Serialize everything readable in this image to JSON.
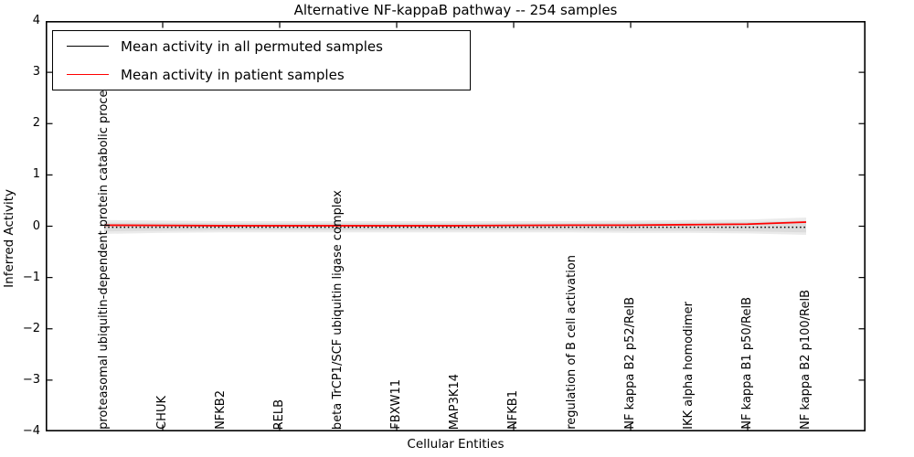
{
  "title": "Alternative NF-kappaB pathway -- 254 samples",
  "chart_data": {
    "type": "line",
    "title": "Alternative NF-kappaB pathway -- 254 samples",
    "xlabel": "Cellular Entities",
    "ylabel": "Inferred Activity",
    "ylim": [
      -4,
      4
    ],
    "grid": false,
    "legend_position": "upper-left",
    "yticks": [
      {
        "v": 4,
        "label": "4"
      },
      {
        "v": 3,
        "label": "3"
      },
      {
        "v": 2,
        "label": "2"
      },
      {
        "v": 1,
        "label": "1"
      },
      {
        "v": 0,
        "label": "0"
      },
      {
        "v": -1,
        "label": "−1"
      },
      {
        "v": -2,
        "label": "−2"
      },
      {
        "v": -3,
        "label": "−3"
      },
      {
        "v": -4,
        "label": "−4"
      }
    ],
    "categories": [
      "proteasomal ubiquitin-dependent protein catabolic process",
      "CHUK",
      "NFKB2",
      "RELB",
      "beta TrCP1/SCF ubiquitin ligase complex",
      "FBXW11",
      "MAP3K14",
      "NFKB1",
      "regulation of B cell activation",
      "NF kappa B2 p52/RelB",
      "IKK alpha homodimer",
      "NF kappa B1 p50/RelB",
      "NF kappa B2 p100/RelB"
    ],
    "series": [
      {
        "name": "Mean activity in all permuted samples",
        "color": "#000000",
        "style": "dotted",
        "values": [
          -0.02,
          -0.02,
          -0.02,
          -0.02,
          -0.02,
          -0.02,
          -0.02,
          -0.02,
          -0.02,
          -0.02,
          -0.02,
          -0.02,
          -0.02
        ]
      },
      {
        "name": "Mean activity in patient samples",
        "color": "#ff0000",
        "style": "solid",
        "values": [
          0.02,
          0.015,
          0.01,
          0.01,
          0.01,
          0.01,
          0.01,
          0.015,
          0.02,
          0.02,
          0.03,
          0.04,
          0.08
        ]
      }
    ],
    "bands": [
      {
        "name": "permuted-range-outer",
        "color": "#ebebeb",
        "upper": [
          0.12,
          0.11,
          0.1,
          0.1,
          0.1,
          0.1,
          0.1,
          0.1,
          0.1,
          0.11,
          0.12,
          0.13,
          0.17
        ],
        "lower": [
          -0.15,
          -0.13,
          -0.12,
          -0.12,
          -0.12,
          -0.12,
          -0.12,
          -0.12,
          -0.12,
          -0.13,
          -0.13,
          -0.14,
          -0.17
        ]
      },
      {
        "name": "permuted-range-inner",
        "color": "#dcdcdc",
        "upper": [
          0.07,
          0.065,
          0.06,
          0.06,
          0.06,
          0.06,
          0.06,
          0.06,
          0.06,
          0.07,
          0.07,
          0.08,
          0.11
        ],
        "lower": [
          -0.1,
          -0.09,
          -0.08,
          -0.08,
          -0.08,
          -0.08,
          -0.08,
          -0.08,
          -0.08,
          -0.09,
          -0.09,
          -0.1,
          -0.12
        ]
      }
    ]
  }
}
